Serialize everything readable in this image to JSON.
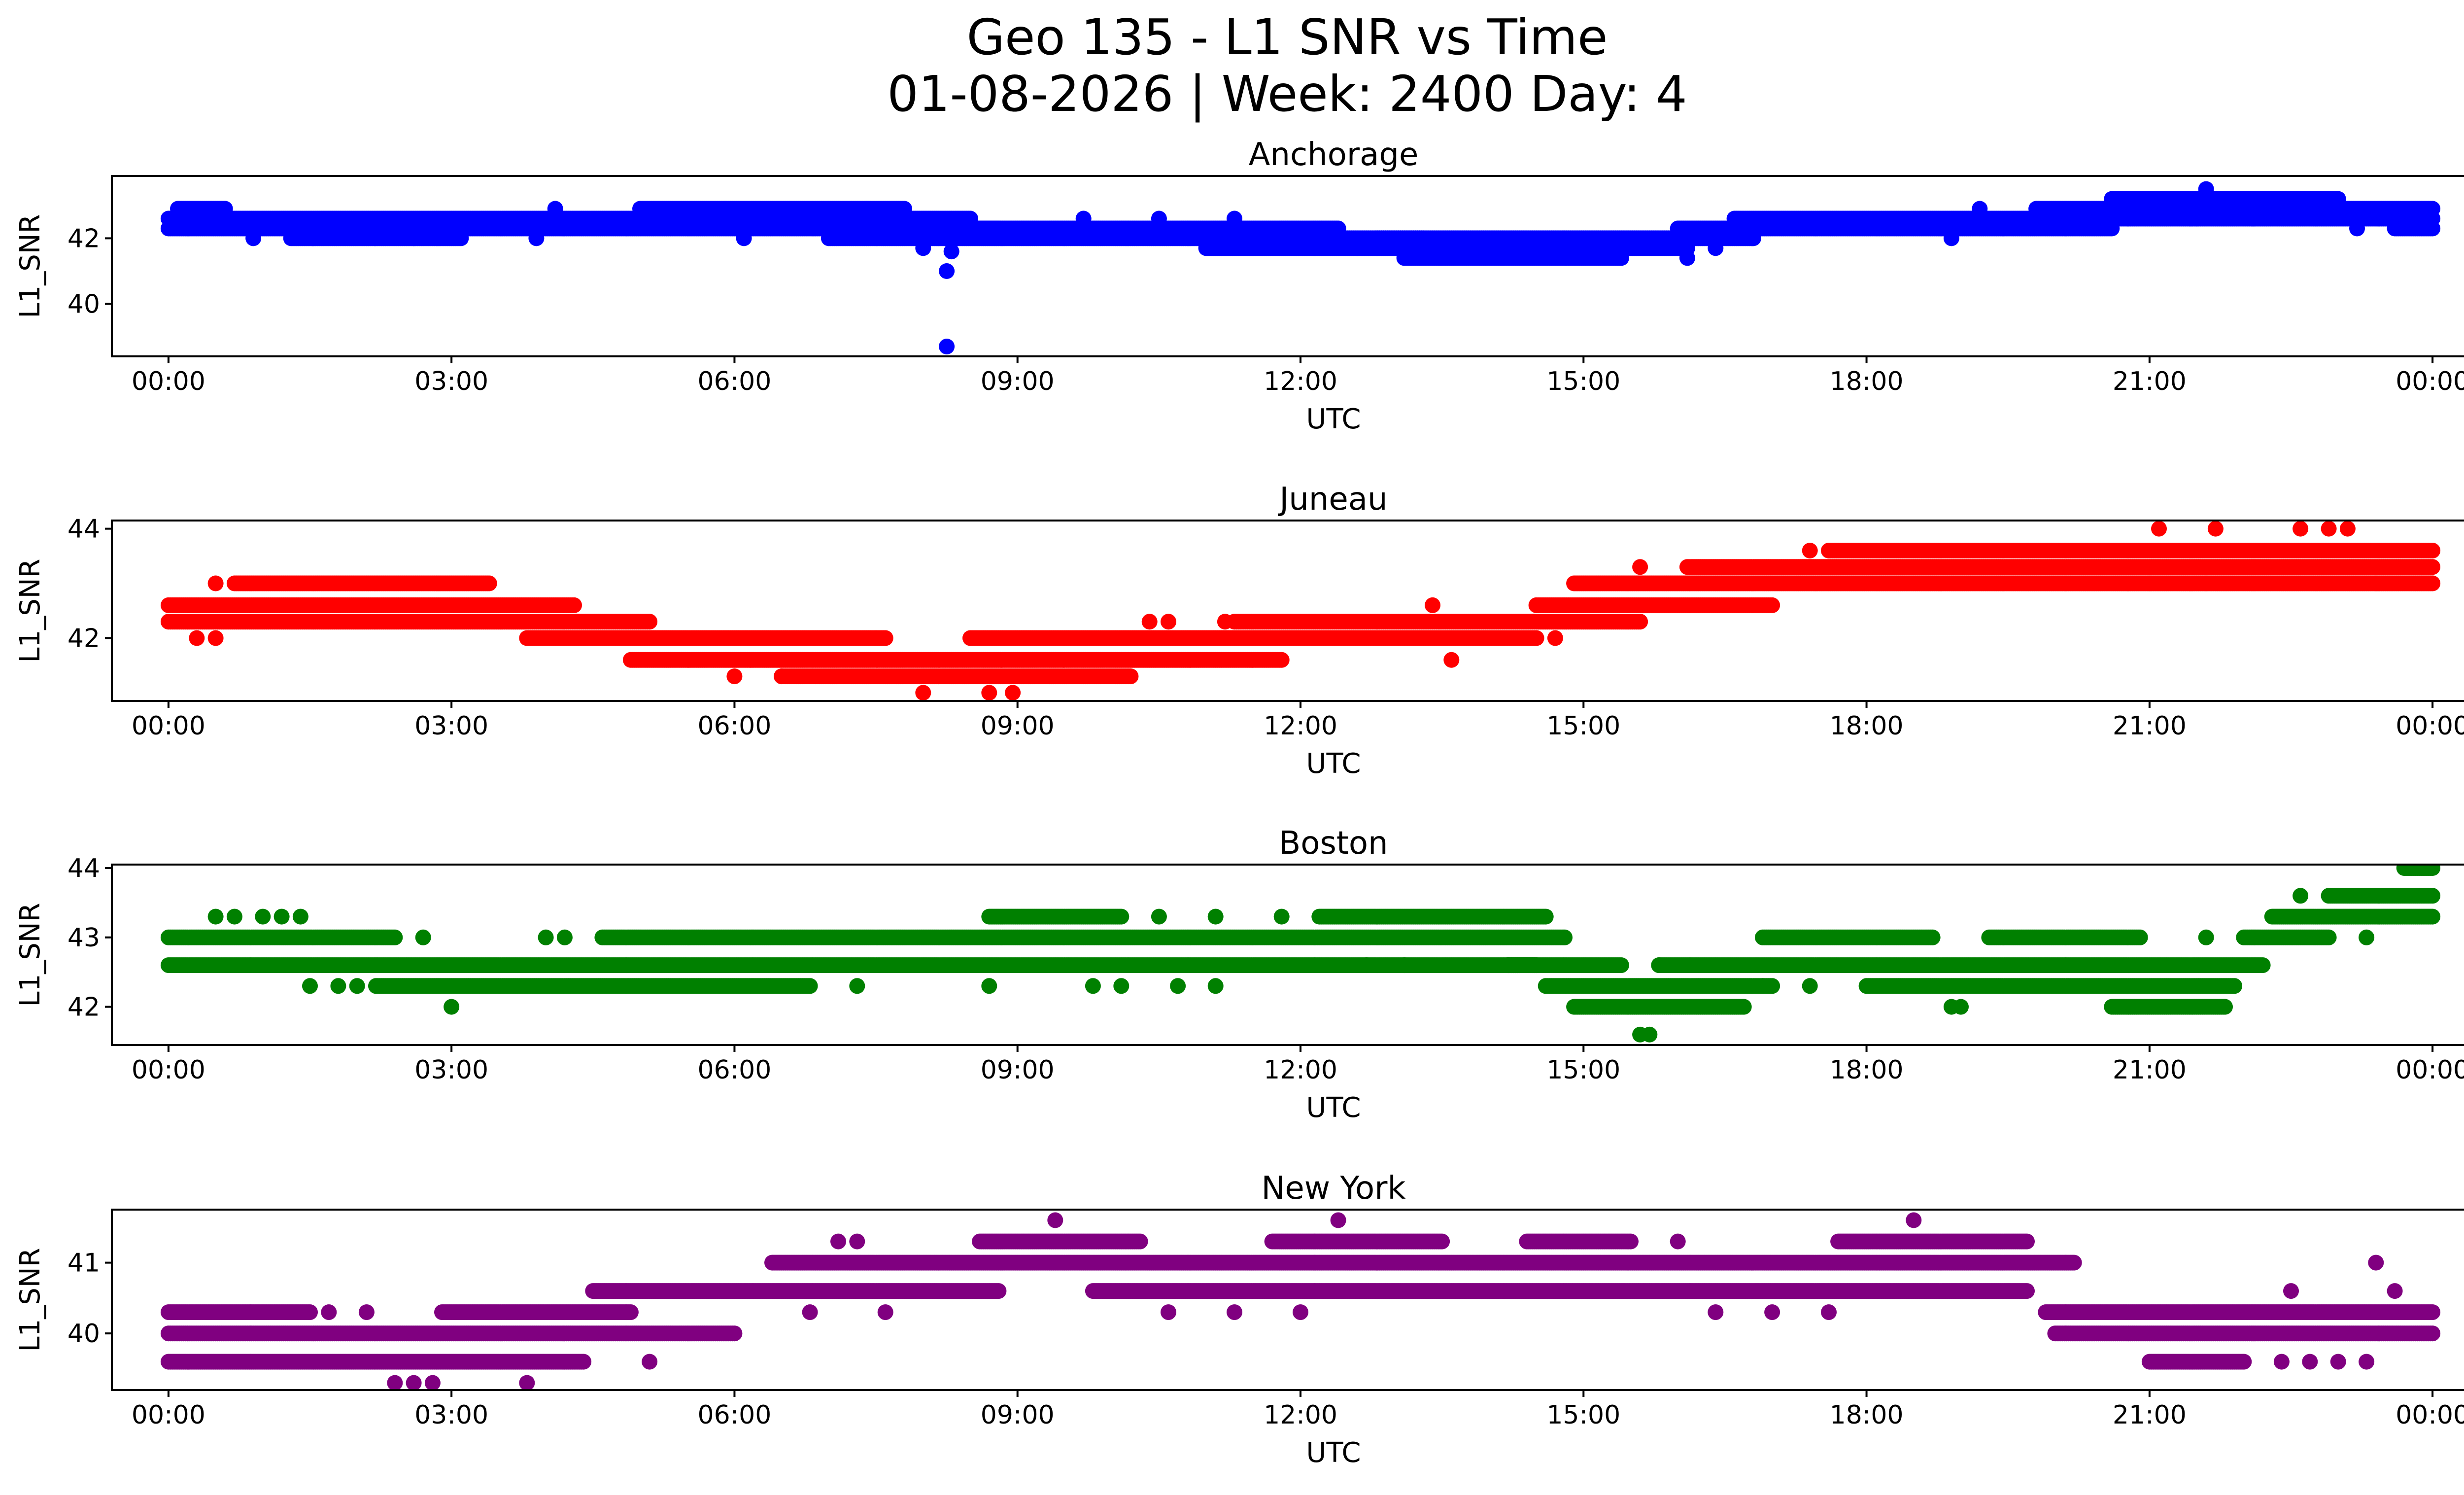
{
  "chart_data": [
    {
      "type": "scatter",
      "title": "Anchorage",
      "color": "#0000ff",
      "xlabel": "UTC",
      "ylabel": "L1_SNR",
      "xlim": [
        -0.6,
        25.3
      ],
      "ylim": [
        38.4,
        43.9
      ],
      "yticks": [
        40,
        42
      ],
      "xticks": [
        "00:00",
        "03:00",
        "06:00",
        "09:00",
        "12:00",
        "15:00",
        "18:00",
        "21:00",
        "00:00"
      ],
      "bands": [
        {
          "y": 42.9,
          "from": 0.1,
          "to": 0.6
        },
        {
          "y": 42.6,
          "from": 0.0,
          "to": 5.0
        },
        {
          "y": 42.9,
          "from": 5.0,
          "to": 7.8
        },
        {
          "y": 42.3,
          "from": 0.0,
          "to": 8.8
        },
        {
          "y": 42.6,
          "from": 5.0,
          "to": 8.5
        },
        {
          "y": 42.3,
          "from": 8.5,
          "to": 12.4
        },
        {
          "y": 42.0,
          "from": 1.3,
          "to": 3.1
        },
        {
          "y": 42.0,
          "from": 7.0,
          "to": 13.3
        },
        {
          "y": 41.7,
          "from": 11.0,
          "to": 16.1
        },
        {
          "y": 41.4,
          "from": 13.1,
          "to": 15.4
        },
        {
          "y": 42.0,
          "from": 12.8,
          "to": 16.8
        },
        {
          "y": 42.3,
          "from": 16.0,
          "to": 20.6
        },
        {
          "y": 42.6,
          "from": 16.6,
          "to": 20.3
        },
        {
          "y": 42.9,
          "from": 19.8,
          "to": 24.0
        },
        {
          "y": 43.2,
          "from": 20.6,
          "to": 23.0
        },
        {
          "y": 42.6,
          "from": 20.4,
          "to": 24.0
        },
        {
          "y": 42.3,
          "from": 23.6,
          "to": 24.0
        }
      ],
      "scatter": [
        [
          0.05,
          42.6
        ],
        [
          0.9,
          42.0
        ],
        [
          2.6,
          42.0
        ],
        [
          3.9,
          42.0
        ],
        [
          4.1,
          42.9
        ],
        [
          5.9,
          42.9
        ],
        [
          6.1,
          42.0
        ],
        [
          7.4,
          42.9
        ],
        [
          8.0,
          41.7
        ],
        [
          8.25,
          41.0
        ],
        [
          8.3,
          41.6
        ],
        [
          8.25,
          38.7
        ],
        [
          9.7,
          42.6
        ],
        [
          10.5,
          42.6
        ],
        [
          11.3,
          42.6
        ],
        [
          12.6,
          41.7
        ],
        [
          16.1,
          41.4
        ],
        [
          16.4,
          41.7
        ],
        [
          18.9,
          42.0
        ],
        [
          19.2,
          42.9
        ],
        [
          21.6,
          43.5
        ],
        [
          22.1,
          42.6
        ],
        [
          23.2,
          42.3
        ],
        [
          21.5,
          42.6
        ],
        [
          21.9,
          42.9
        ]
      ]
    },
    {
      "type": "scatter",
      "title": "Juneau",
      "color": "#ff0000",
      "xlabel": "UTC",
      "ylabel": "L1_SNR",
      "xlim": [
        -0.6,
        25.3
      ],
      "ylim": [
        40.85,
        44.15
      ],
      "yticks": [
        42,
        44
      ],
      "xticks": [
        "00:00",
        "03:00",
        "06:00",
        "09:00",
        "12:00",
        "15:00",
        "18:00",
        "21:00",
        "00:00"
      ],
      "bands": [
        {
          "y": 42.6,
          "from": 0.0,
          "to": 4.3
        },
        {
          "y": 42.3,
          "from": 0.0,
          "to": 5.1
        },
        {
          "y": 43.0,
          "from": 0.7,
          "to": 3.4
        },
        {
          "y": 42.0,
          "from": 3.8,
          "to": 7.6
        },
        {
          "y": 41.6,
          "from": 4.9,
          "to": 11.8
        },
        {
          "y": 41.3,
          "from": 6.5,
          "to": 10.2
        },
        {
          "y": 42.0,
          "from": 8.5,
          "to": 14.5
        },
        {
          "y": 42.3,
          "from": 11.3,
          "to": 15.6
        },
        {
          "y": 42.6,
          "from": 14.5,
          "to": 17.0
        },
        {
          "y": 43.0,
          "from": 14.9,
          "to": 24.0
        },
        {
          "y": 43.3,
          "from": 16.1,
          "to": 24.0
        },
        {
          "y": 43.6,
          "from": 17.6,
          "to": 24.0
        }
      ],
      "scatter": [
        [
          0.3,
          42.0
        ],
        [
          0.5,
          42.0
        ],
        [
          0.5,
          43.0
        ],
        [
          6.0,
          41.3
        ],
        [
          6.5,
          41.3
        ],
        [
          8.0,
          41.0
        ],
        [
          8.7,
          41.0
        ],
        [
          8.95,
          41.0
        ],
        [
          7.5,
          42.0
        ],
        [
          10.4,
          42.3
        ],
        [
          10.6,
          42.3
        ],
        [
          11.2,
          42.3
        ],
        [
          13.4,
          42.6
        ],
        [
          13.6,
          41.6
        ],
        [
          14.7,
          42.0
        ],
        [
          15.6,
          43.3
        ],
        [
          17.4,
          43.6
        ],
        [
          21.1,
          44.0
        ],
        [
          21.7,
          44.0
        ],
        [
          22.6,
          44.0
        ],
        [
          22.9,
          44.0
        ],
        [
          23.1,
          44.0
        ],
        [
          21.0,
          43.0
        ],
        [
          21.6,
          43.0
        ],
        [
          23.4,
          43.0
        ]
      ]
    },
    {
      "type": "scatter",
      "title": "Boston",
      "color": "#008000",
      "xlabel": "UTC",
      "ylabel": "L1_SNR",
      "xlim": [
        -0.6,
        25.3
      ],
      "ylim": [
        41.45,
        44.05
      ],
      "yticks": [
        42,
        43,
        44
      ],
      "xticks": [
        "00:00",
        "03:00",
        "06:00",
        "09:00",
        "12:00",
        "15:00",
        "18:00",
        "21:00",
        "00:00"
      ],
      "bands": [
        {
          "y": 43.0,
          "from": 0.0,
          "to": 2.4
        },
        {
          "y": 42.6,
          "from": 0.0,
          "to": 14.5
        },
        {
          "y": 42.3,
          "from": 2.2,
          "to": 6.8
        },
        {
          "y": 43.0,
          "from": 4.6,
          "to": 14.8
        },
        {
          "y": 43.3,
          "from": 8.7,
          "to": 10.1
        },
        {
          "y": 43.3,
          "from": 12.2,
          "to": 14.6
        },
        {
          "y": 42.6,
          "from": 14.2,
          "to": 15.4
        },
        {
          "y": 42.3,
          "from": 14.6,
          "to": 17.0
        },
        {
          "y": 42.0,
          "from": 14.9,
          "to": 16.7
        },
        {
          "y": 42.6,
          "from": 15.8,
          "to": 22.2
        },
        {
          "y": 43.0,
          "from": 16.9,
          "to": 18.7
        },
        {
          "y": 42.3,
          "from": 18.0,
          "to": 21.9
        },
        {
          "y": 43.0,
          "from": 19.3,
          "to": 20.9
        },
        {
          "y": 42.0,
          "from": 20.6,
          "to": 21.8
        },
        {
          "y": 43.0,
          "from": 22.0,
          "to": 22.9
        },
        {
          "y": 43.3,
          "from": 22.3,
          "to": 24.0
        },
        {
          "y": 43.6,
          "from": 22.9,
          "to": 24.0
        },
        {
          "y": 44.0,
          "from": 23.7,
          "to": 24.0
        }
      ],
      "scatter": [
        [
          0.5,
          43.3
        ],
        [
          0.7,
          43.3
        ],
        [
          1.0,
          43.3
        ],
        [
          1.2,
          43.3
        ],
        [
          1.4,
          43.3
        ],
        [
          1.5,
          42.3
        ],
        [
          1.8,
          42.3
        ],
        [
          2.0,
          42.3
        ],
        [
          2.7,
          43.0
        ],
        [
          3.0,
          42.0
        ],
        [
          4.0,
          43.0
        ],
        [
          4.2,
          43.0
        ],
        [
          7.3,
          42.3
        ],
        [
          8.7,
          42.3
        ],
        [
          9.8,
          42.3
        ],
        [
          10.1,
          42.3
        ],
        [
          10.5,
          43.3
        ],
        [
          10.7,
          42.3
        ],
        [
          11.1,
          43.3
        ],
        [
          11.1,
          42.3
        ],
        [
          11.8,
          43.3
        ],
        [
          12.7,
          42.6
        ],
        [
          13.1,
          42.6
        ],
        [
          14.2,
          42.6
        ],
        [
          15.6,
          41.6
        ],
        [
          15.7,
          41.6
        ],
        [
          15.8,
          42.6
        ],
        [
          16.9,
          42.3
        ],
        [
          17.4,
          42.3
        ],
        [
          18.9,
          42.0
        ],
        [
          19.0,
          42.0
        ],
        [
          21.6,
          43.0
        ],
        [
          22.6,
          43.6
        ],
        [
          23.3,
          43.0
        ]
      ]
    },
    {
      "type": "scatter",
      "title": "New York",
      "color": "#800080",
      "xlabel": "UTC",
      "ylabel": "L1_SNR",
      "xlim": [
        -0.6,
        25.3
      ],
      "ylim": [
        39.2,
        41.75
      ],
      "yticks": [
        40,
        41
      ],
      "xticks": [
        "00:00",
        "03:00",
        "06:00",
        "09:00",
        "12:00",
        "15:00",
        "18:00",
        "21:00",
        "00:00"
      ],
      "bands": [
        {
          "y": 40.3,
          "from": 0.0,
          "to": 1.5
        },
        {
          "y": 40.0,
          "from": 0.0,
          "to": 6.0
        },
        {
          "y": 39.6,
          "from": 0.0,
          "to": 4.4
        },
        {
          "y": 40.3,
          "from": 2.9,
          "to": 4.9
        },
        {
          "y": 40.6,
          "from": 4.5,
          "to": 8.8
        },
        {
          "y": 41.0,
          "from": 6.4,
          "to": 20.2
        },
        {
          "y": 41.3,
          "from": 8.6,
          "to": 10.3
        },
        {
          "y": 40.6,
          "from": 9.8,
          "to": 19.7
        },
        {
          "y": 41.3,
          "from": 11.7,
          "to": 13.5
        },
        {
          "y": 41.3,
          "from": 14.4,
          "to": 15.5
        },
        {
          "y": 41.3,
          "from": 17.7,
          "to": 19.7
        },
        {
          "y": 40.3,
          "from": 19.9,
          "to": 24.0
        },
        {
          "y": 40.0,
          "from": 20.0,
          "to": 24.0
        },
        {
          "y": 39.6,
          "from": 21.0,
          "to": 22.0
        }
      ],
      "scatter": [
        [
          1.7,
          40.3
        ],
        [
          2.1,
          40.3
        ],
        [
          2.4,
          39.3
        ],
        [
          2.6,
          39.3
        ],
        [
          2.8,
          39.3
        ],
        [
          3.8,
          39.3
        ],
        [
          5.1,
          39.6
        ],
        [
          6.8,
          40.3
        ],
        [
          7.1,
          41.3
        ],
        [
          7.3,
          41.3
        ],
        [
          7.6,
          40.3
        ],
        [
          9.4,
          41.6
        ],
        [
          10.6,
          40.3
        ],
        [
          11.3,
          40.3
        ],
        [
          12.0,
          40.3
        ],
        [
          12.4,
          41.6
        ],
        [
          16.0,
          41.3
        ],
        [
          16.4,
          40.3
        ],
        [
          17.0,
          40.3
        ],
        [
          17.6,
          40.3
        ],
        [
          18.5,
          41.6
        ],
        [
          22.5,
          40.6
        ],
        [
          23.0,
          39.6
        ],
        [
          23.4,
          41.0
        ],
        [
          23.6,
          40.6
        ],
        [
          22.4,
          39.6
        ],
        [
          22.7,
          39.6
        ],
        [
          23.3,
          39.6
        ]
      ]
    }
  ],
  "figure": {
    "title_line1": "Geo 135 - L1 SNR vs Time",
    "title_line2": "01-08-2026 | Week: 2400 Day: 4"
  }
}
